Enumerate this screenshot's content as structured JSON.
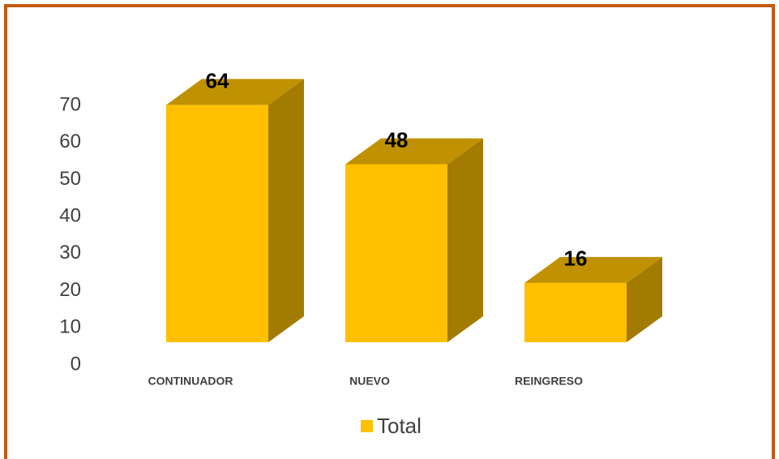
{
  "chart_data": {
    "type": "bar3d",
    "categories": [
      "CONTINUADOR",
      "NUEVO",
      "REINGRESO"
    ],
    "series": [
      {
        "name": "Total",
        "color": "#ffc000",
        "values": [
          64,
          48,
          16
        ]
      }
    ],
    "ylim": [
      0,
      70
    ],
    "yticks": [
      0,
      10,
      20,
      30,
      40,
      50,
      60,
      70
    ],
    "legend": "bottom"
  }
}
